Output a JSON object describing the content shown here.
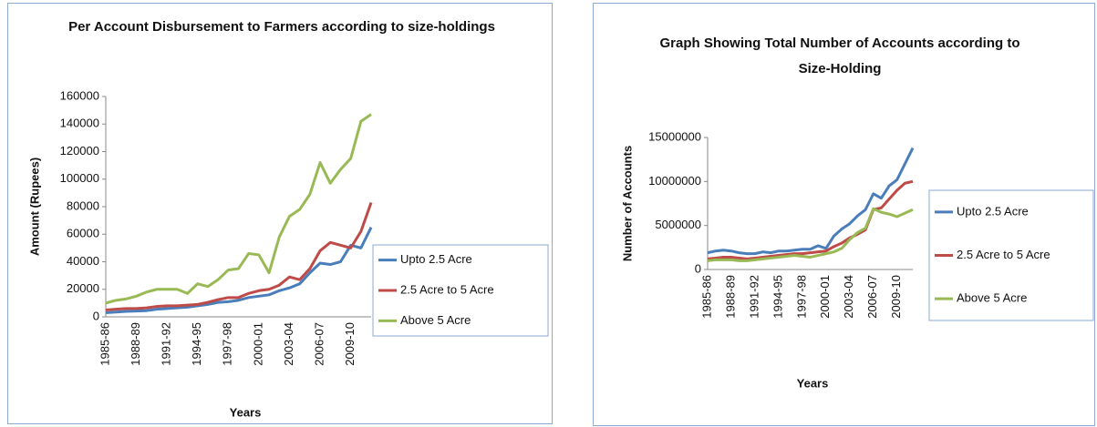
{
  "chart_data": [
    {
      "type": "line",
      "title": "Per Account Disbursement to Farmers according to size-holdings",
      "x_label": "Years",
      "y_label": "Amount (Rupees)",
      "categories": [
        "1985-86",
        null,
        null,
        "1988-89",
        null,
        null,
        "1991-92",
        null,
        null,
        "1994-95",
        null,
        null,
        "1997-98",
        null,
        null,
        "2000-01",
        null,
        null,
        "2003-04",
        null,
        null,
        "2006-07",
        null,
        null,
        "2009-10",
        null,
        null
      ],
      "ylim": [
        0,
        160000
      ],
      "yticks": [
        0,
        20000,
        40000,
        60000,
        80000,
        100000,
        120000,
        140000,
        160000
      ],
      "legend": "right",
      "series": [
        {
          "name": "Upto 2.5 Acre",
          "color": "#4a7ebb",
          "values": [
            3000,
            3500,
            4000,
            4200,
            4500,
            5500,
            6000,
            6500,
            7000,
            8000,
            9000,
            10500,
            11000,
            12000,
            14000,
            15000,
            16000,
            19000,
            21000,
            24000,
            32000,
            39000,
            38000,
            40000,
            52000,
            50000,
            65000
          ]
        },
        {
          "name": "2.5 Acre to 5 Acre",
          "color": "#be4b48",
          "values": [
            5000,
            5500,
            6000,
            6000,
            6500,
            7500,
            8000,
            8000,
            8500,
            9000,
            10500,
            12500,
            14000,
            14000,
            17000,
            19000,
            20000,
            23000,
            29000,
            27000,
            35000,
            48000,
            54000,
            52000,
            50000,
            62000,
            83000
          ]
        },
        {
          "name": "Above 5 Acre",
          "color": "#98b954",
          "values": [
            10000,
            12000,
            13000,
            15000,
            18000,
            20000,
            20000,
            20000,
            17000,
            24000,
            22000,
            27000,
            34000,
            35000,
            46000,
            45000,
            32000,
            58000,
            73000,
            78000,
            89000,
            112000,
            97000,
            107000,
            115000,
            142000,
            147000
          ]
        }
      ]
    },
    {
      "type": "line",
      "title": "Graph Showing Total Number of Accounts according to Size-Holding",
      "x_label": "Years",
      "y_label": "Number of Accounts",
      "categories": [
        "1985-86",
        null,
        null,
        "1988-89",
        null,
        null,
        "1991-92",
        null,
        null,
        "1994-95",
        null,
        null,
        "1997-98",
        null,
        null,
        "2000-01",
        null,
        null,
        "2003-04",
        null,
        null,
        "2006-07",
        null,
        null,
        "2009-10",
        null,
        null
      ],
      "ylim": [
        0,
        15000000
      ],
      "yticks": [
        0,
        5000000,
        10000000,
        15000000
      ],
      "legend": "right",
      "series": [
        {
          "name": "Upto 2.5 Acre",
          "color": "#4a7ebb",
          "values": [
            1900000,
            2100000,
            2200000,
            2100000,
            1900000,
            1800000,
            1800000,
            2000000,
            1900000,
            2100000,
            2100000,
            2200000,
            2300000,
            2300000,
            2700000,
            2400000,
            3800000,
            4600000,
            5200000,
            6100000,
            6800000,
            8600000,
            8100000,
            9500000,
            10200000,
            12000000,
            13800000
          ]
        },
        {
          "name": "2.5 Acre to 5 Acre",
          "color": "#be4b48",
          "values": [
            1200000,
            1300000,
            1400000,
            1400000,
            1300000,
            1200000,
            1300000,
            1400000,
            1500000,
            1600000,
            1700000,
            1800000,
            1800000,
            1900000,
            2000000,
            2100000,
            2600000,
            3000000,
            3600000,
            4000000,
            4500000,
            6800000,
            7000000,
            8000000,
            9000000,
            9800000,
            10000000
          ]
        },
        {
          "name": "Above 5 Acre",
          "color": "#98b954",
          "values": [
            1000000,
            1100000,
            1100000,
            1100000,
            1000000,
            1000000,
            1100000,
            1200000,
            1300000,
            1400000,
            1500000,
            1600000,
            1500000,
            1400000,
            1600000,
            1800000,
            2000000,
            2400000,
            3400000,
            4200000,
            4700000,
            6900000,
            6500000,
            6300000,
            6000000,
            6400000,
            6800000
          ]
        }
      ]
    }
  ]
}
